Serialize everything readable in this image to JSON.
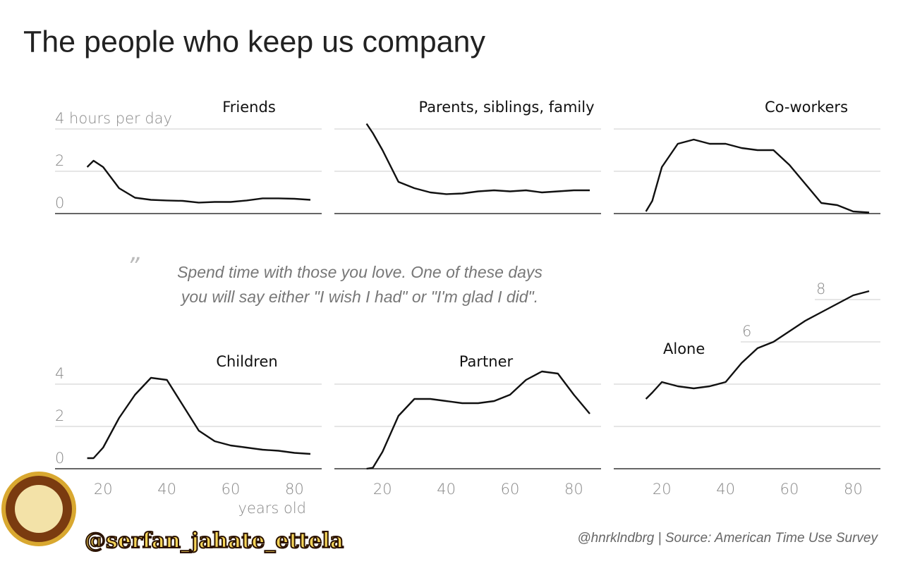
{
  "title": "The people who keep us company",
  "quote": [
    "Spend time with those you love. One of these days",
    "you will say either \"I wish I had\" or \"I'm glad I did\"."
  ],
  "credit": "@hnrklndbrg | Source: American Time Use Survey",
  "watermark": "@serfan_jahate_ettela",
  "chart_data": [
    {
      "type": "line",
      "title": "Friends",
      "color": "#111111",
      "xlim": [
        10,
        90
      ],
      "ylim": [
        0,
        4.5
      ],
      "yticks": [
        0,
        2,
        {
          "value": 4,
          "label": "4 hours per day"
        }
      ],
      "x": [
        15,
        17,
        20,
        25,
        30,
        35,
        40,
        45,
        50,
        55,
        60,
        65,
        70,
        75,
        80,
        85
      ],
      "values": [
        2.2,
        2.5,
        2.2,
        1.2,
        0.75,
        0.65,
        0.62,
        0.6,
        0.52,
        0.55,
        0.55,
        0.62,
        0.72,
        0.72,
        0.7,
        0.65
      ]
    },
    {
      "type": "line",
      "title": "Parents, siblings, family",
      "color": "#111111",
      "xlim": [
        10,
        90
      ],
      "ylim": [
        0,
        4.5
      ],
      "ygrid": [
        0,
        2,
        4
      ],
      "x": [
        15,
        17,
        20,
        25,
        30,
        35,
        40,
        45,
        50,
        55,
        60,
        65,
        70,
        75,
        80,
        85
      ],
      "values": [
        4.25,
        3.8,
        3.0,
        1.5,
        1.2,
        1.0,
        0.92,
        0.95,
        1.05,
        1.1,
        1.05,
        1.1,
        1.0,
        1.05,
        1.1,
        1.1
      ]
    },
    {
      "type": "line",
      "title": "Co-workers",
      "color": "#111111",
      "xlim": [
        10,
        90
      ],
      "ylim": [
        0,
        4.5
      ],
      "ygrid": [
        0,
        2,
        4
      ],
      "x": [
        15,
        17,
        20,
        25,
        30,
        35,
        40,
        45,
        50,
        55,
        60,
        65,
        70,
        75,
        80,
        85
      ],
      "values": [
        0.1,
        0.6,
        2.2,
        3.3,
        3.5,
        3.3,
        3.3,
        3.1,
        3.0,
        3.0,
        2.3,
        1.4,
        0.5,
        0.4,
        0.1,
        0.05
      ]
    },
    {
      "type": "line",
      "title": "Children",
      "color": "#111111",
      "xlim": [
        10,
        90
      ],
      "ylim": [
        0,
        4.7
      ],
      "yticks": [
        0,
        2,
        4
      ],
      "xticks": [
        20,
        40,
        60,
        80
      ],
      "xlabel": "years old",
      "x": [
        15,
        17,
        20,
        25,
        30,
        35,
        40,
        45,
        50,
        55,
        60,
        65,
        70,
        75,
        80,
        85
      ],
      "values": [
        0.5,
        0.5,
        1.0,
        2.4,
        3.5,
        4.3,
        4.2,
        3.0,
        1.8,
        1.3,
        1.1,
        1.0,
        0.9,
        0.85,
        0.75,
        0.7
      ]
    },
    {
      "type": "line",
      "title": "Partner",
      "color": "#111111",
      "xlim": [
        10,
        90
      ],
      "ylim": [
        0,
        4.7
      ],
      "ygrid": [
        0,
        2,
        4
      ],
      "xticks": [
        20,
        40,
        60,
        80
      ],
      "x": [
        15,
        17,
        20,
        25,
        30,
        35,
        40,
        45,
        50,
        55,
        60,
        65,
        70,
        75,
        80,
        85
      ],
      "values": [
        0,
        0.05,
        0.8,
        2.5,
        3.3,
        3.3,
        3.2,
        3.1,
        3.1,
        3.2,
        3.5,
        4.2,
        4.6,
        4.5,
        3.5,
        2.6
      ]
    },
    {
      "type": "line",
      "title": "Alone",
      "color": "#111111",
      "xlim": [
        10,
        90
      ],
      "ylim": [
        0,
        8.7
      ],
      "ygrid": [
        0,
        2,
        4
      ],
      "yticks": [
        6,
        8
      ],
      "xticks": [
        20,
        40,
        60,
        80
      ],
      "x": [
        15,
        17,
        20,
        25,
        30,
        35,
        40,
        45,
        50,
        55,
        60,
        65,
        70,
        75,
        80,
        85
      ],
      "values": [
        3.3,
        3.6,
        4.1,
        3.9,
        3.8,
        3.9,
        4.1,
        5.0,
        5.7,
        6.0,
        6.5,
        7.0,
        7.4,
        7.8,
        8.2,
        8.4
      ]
    }
  ]
}
